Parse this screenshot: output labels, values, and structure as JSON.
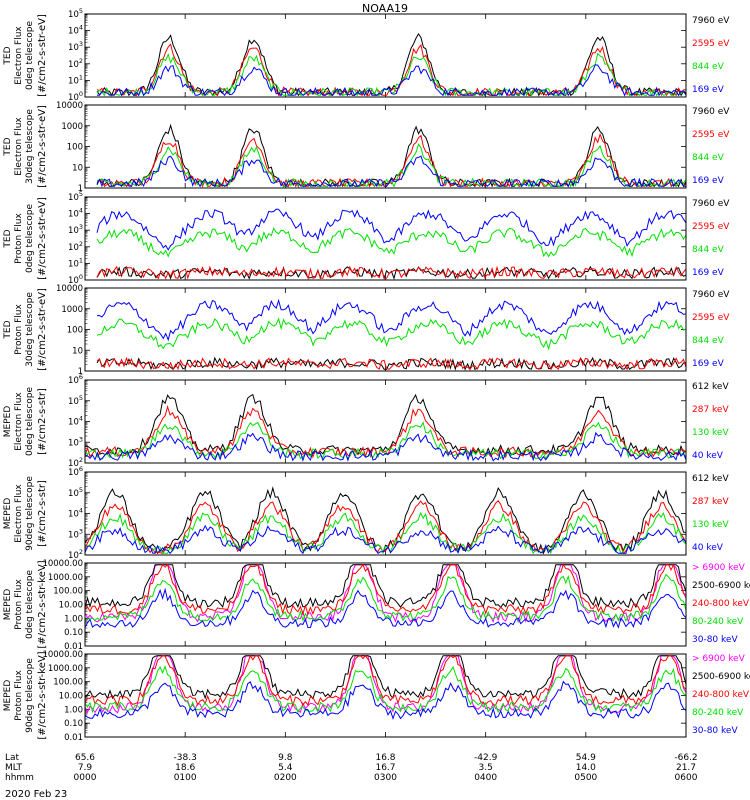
{
  "title": "NOAA19",
  "date": "2020 Feb 23",
  "colors": {
    "red": "#ff0000",
    "green": "#00e000",
    "blue": "#0000ff",
    "black": "#000000",
    "magenta": "#ff00ff"
  },
  "footer": {
    "row_labels": [
      "Lat",
      "MLT",
      "hhmm"
    ],
    "columns": [
      {
        "lat": "65.6",
        "mlt": "7.9",
        "hhmm": "0000"
      },
      {
        "lat": "-38.3",
        "mlt": "18.6",
        "hhmm": "0100"
      },
      {
        "lat": "9.8",
        "mlt": "5.4",
        "hhmm": "0200"
      },
      {
        "lat": "16.8",
        "mlt": "16.7",
        "hhmm": "0300"
      },
      {
        "lat": "-42.9",
        "mlt": "3.5",
        "hhmm": "0400"
      },
      {
        "lat": "54.9",
        "mlt": "14.0",
        "hhmm": "0500"
      },
      {
        "lat": "-66.2",
        "mlt": "21.7",
        "hhmm": "0600"
      }
    ]
  },
  "chart_data": [
    {
      "type": "line",
      "ylabel": [
        "TED",
        "Electron Flux",
        "0deg telescope",
        "[#/cm2-s-str-eV]"
      ],
      "yscale": "log",
      "ytick_labels": [
        "10^0",
        "10^1",
        "10^2",
        "10^3",
        "10^4",
        "10^5"
      ],
      "x_range_hhmm": [
        "0000",
        "0600"
      ],
      "series": [
        {
          "name": "7960 eV",
          "color": "black"
        },
        {
          "name": "2595 eV",
          "color": "red"
        },
        {
          "name": "844 eV",
          "color": "green"
        },
        {
          "name": "169 eV",
          "color": "blue"
        }
      ]
    },
    {
      "type": "line",
      "ylabel": [
        "TED",
        "Electron Flux",
        "30deg telescope",
        "[#/cm2-s-str-eV]"
      ],
      "yscale": "log",
      "ytick_labels": [
        "1",
        "10",
        "100",
        "1000",
        "10000"
      ],
      "x_range_hhmm": [
        "0000",
        "0600"
      ],
      "series": [
        {
          "name": "7960 eV",
          "color": "black"
        },
        {
          "name": "2595 eV",
          "color": "red"
        },
        {
          "name": "844 eV",
          "color": "green"
        },
        {
          "name": "169 eV",
          "color": "blue"
        }
      ]
    },
    {
      "type": "line",
      "ylabel": [
        "TED",
        "Proton Flux",
        "0deg telescope",
        "[#/cm2-s-str-eV]"
      ],
      "yscale": "log",
      "ytick_labels": [
        "10^0",
        "10^1",
        "10^2",
        "10^3",
        "10^4",
        "10^5"
      ],
      "x_range_hhmm": [
        "0000",
        "0600"
      ],
      "series": [
        {
          "name": "7960 eV",
          "color": "black"
        },
        {
          "name": "2595 eV",
          "color": "red"
        },
        {
          "name": "844 eV",
          "color": "green"
        },
        {
          "name": "169 eV",
          "color": "blue"
        }
      ]
    },
    {
      "type": "line",
      "ylabel": [
        "TED",
        "Proton Flux",
        "30deg telescope",
        "[#/cm2-s-str-eV]"
      ],
      "yscale": "log",
      "ytick_labels": [
        "1",
        "10",
        "100",
        "1000",
        "10000"
      ],
      "x_range_hhmm": [
        "0000",
        "0600"
      ],
      "series": [
        {
          "name": "7960 eV",
          "color": "black"
        },
        {
          "name": "2595 eV",
          "color": "red"
        },
        {
          "name": "844 eV",
          "color": "green"
        },
        {
          "name": "169 eV",
          "color": "blue"
        }
      ]
    },
    {
      "type": "line",
      "ylabel": [
        "MEPED",
        "Electron Flux",
        "0deg telescope",
        "[#/cm2-s-str]"
      ],
      "yscale": "log",
      "ytick_labels": [
        "10^2",
        "10^3",
        "10^4",
        "10^5",
        "10^6"
      ],
      "x_range_hhmm": [
        "0000",
        "0600"
      ],
      "series": [
        {
          "name": "612 keV",
          "color": "black"
        },
        {
          "name": "287 keV",
          "color": "red"
        },
        {
          "name": "130 keV",
          "color": "green"
        },
        {
          "name": "40 keV",
          "color": "blue"
        }
      ]
    },
    {
      "type": "line",
      "ylabel": [
        "MEPED",
        "Electron Flux",
        "90deg telescope",
        "[#/cm2-s-str]"
      ],
      "yscale": "log",
      "ytick_labels": [
        "10^2",
        "10^3",
        "10^4",
        "10^5",
        "10^6"
      ],
      "x_range_hhmm": [
        "0000",
        "0600"
      ],
      "series": [
        {
          "name": "612 keV",
          "color": "black"
        },
        {
          "name": "287 keV",
          "color": "red"
        },
        {
          "name": "130 keV",
          "color": "green"
        },
        {
          "name": "40 keV",
          "color": "blue"
        }
      ]
    },
    {
      "type": "line",
      "ylabel": [
        "MEPED",
        "Proton Flux",
        "0deg telescope",
        "[#/cm2-s-str-keV]"
      ],
      "yscale": "log",
      "ytick_labels": [
        "0.01",
        "0.10",
        "1.00",
        "10.00",
        "100.00",
        "1000.00",
        "10000.00"
      ],
      "x_range_hhmm": [
        "0000",
        "0600"
      ],
      "series": [
        {
          "name": "> 6900 keV",
          "color": "magenta"
        },
        {
          "name": "2500-6900 keV",
          "color": "black"
        },
        {
          "name": "240-800 keV",
          "color": "red"
        },
        {
          "name": "80-240 keV",
          "color": "green"
        },
        {
          "name": "30-80 keV",
          "color": "blue"
        }
      ]
    },
    {
      "type": "line",
      "ylabel": [
        "MEPED",
        "Proton Flux",
        "90deg telescope",
        "[#/cm2-s-str-keV]"
      ],
      "yscale": "log",
      "ytick_labels": [
        "0.01",
        "0.10",
        "1.00",
        "10.00",
        "100.00",
        "1000.00",
        "10000.00"
      ],
      "x_range_hhmm": [
        "0000",
        "0600"
      ],
      "series": [
        {
          "name": "> 6900 keV",
          "color": "magenta"
        },
        {
          "name": "2500-6900 keV",
          "color": "black"
        },
        {
          "name": "240-800 keV",
          "color": "red"
        },
        {
          "name": "80-240 keV",
          "color": "green"
        },
        {
          "name": "30-80 keV",
          "color": "blue"
        }
      ]
    }
  ]
}
